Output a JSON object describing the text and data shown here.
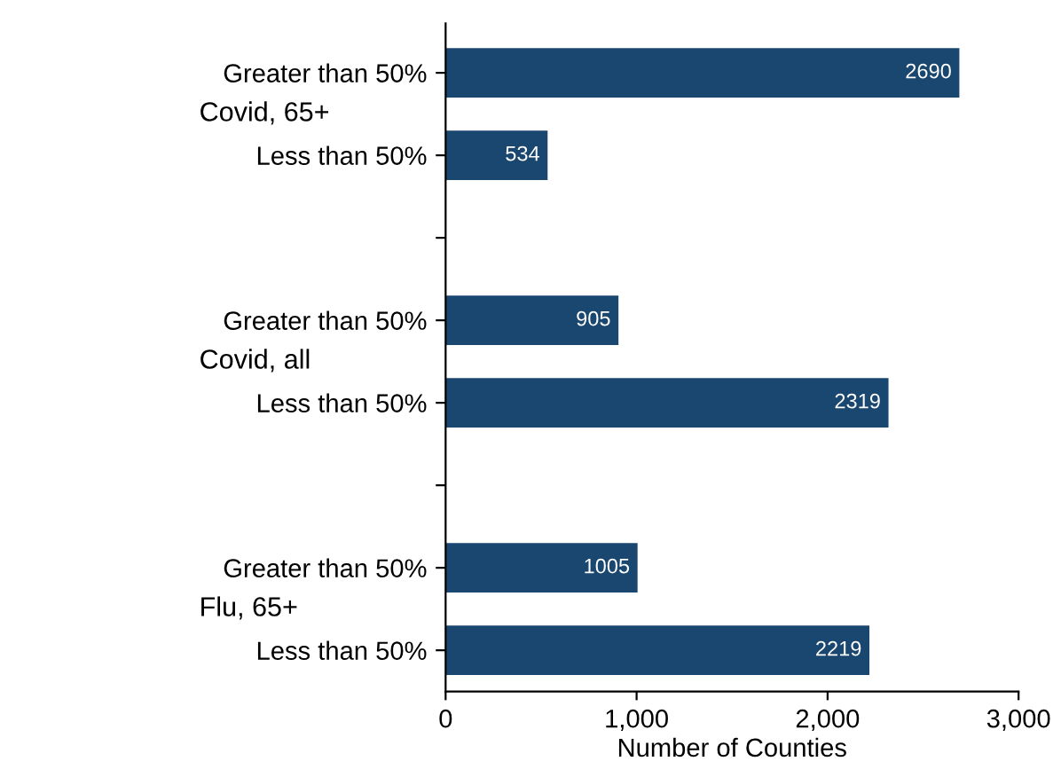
{
  "chart_data": {
    "type": "bar",
    "orientation": "horizontal",
    "categories": [
      "Greater than 50%",
      "Less than 50%",
      null,
      "Greater than 50%",
      "Less than 50%",
      null,
      "Greater than 50%",
      "Less than 50%"
    ],
    "values": [
      2690,
      534,
      null,
      905,
      2319,
      null,
      1005,
      2219
    ],
    "color": "#1a476f",
    "data_labels": true,
    "xlabel": "Number of Counties",
    "xlim": [
      0,
      3000
    ],
    "xticks": [
      0,
      {
        "value": 1000,
        "label": "1,000"
      },
      {
        "value": 2000,
        "label": "2,000"
      },
      {
        "value": 3000,
        "label": "3,000"
      }
    ],
    "annotations": [
      "Covid, 65+",
      "Covid, all",
      "Flu, 65+"
    ],
    "grid": false
  }
}
